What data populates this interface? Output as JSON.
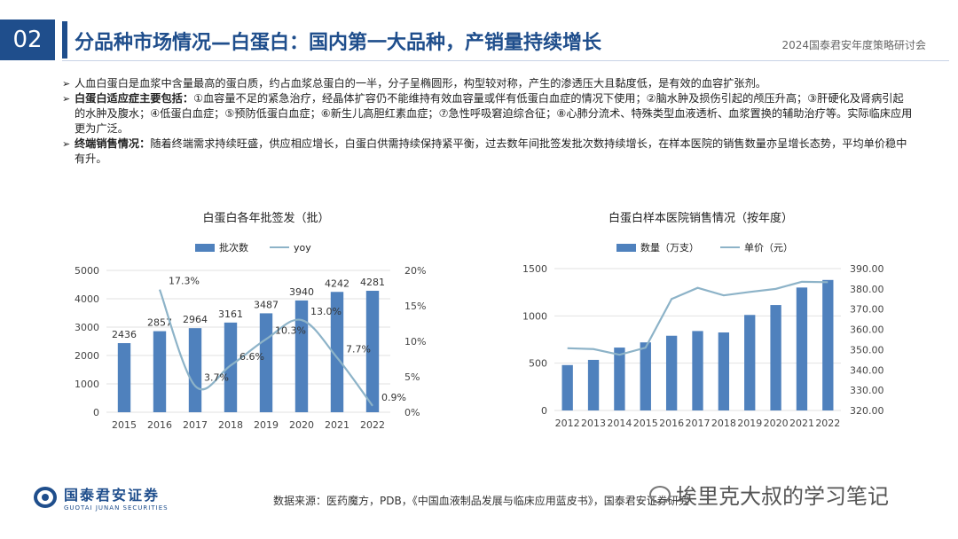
{
  "header": {
    "slide_number": "02",
    "title": "分品种市场情况—白蛋白：国内第一大品种，产销量持续增长",
    "conference": "2024国泰君安年度策略研讨会"
  },
  "bullets": [
    {
      "bold": "",
      "text": "人血白蛋白是血浆中含量最高的蛋白质，约占血浆总蛋白的一半，分子呈椭圆形，构型较对称，产生的渗透压大且黏度低，是有效的血容扩张剂。"
    },
    {
      "bold": "白蛋白适应症主要包括：",
      "text": "①血容量不足的紧急治疗，经晶体扩容仍不能维持有效血容量或伴有低蛋白血症的情况下使用；②脑水肿及损伤引起的颅压升高；③肝硬化及肾病引起的水肿及腹水；④低蛋白血症；⑤预防低蛋白血症；⑥新生儿高胆红素血症；⑦急性呼吸窘迫综合征；⑧心肺分流术、特殊类型血液透析、血浆置换的辅助治疗等。实际临床应用更为广泛。"
    },
    {
      "bold": "终端销售情况：",
      "text": "随着终端需求持续旺盛，供应相应增长，白蛋白供需持续保持紧平衡，过去数年间批签发批次数持续增长，在样本医院的销售数量亦呈增长态势，平均单价稳中有升。"
    }
  ],
  "chart_data": [
    {
      "type": "bar",
      "title": "白蛋白各年批签发（批）",
      "categories": [
        "2015",
        "2016",
        "2017",
        "2018",
        "2019",
        "2020",
        "2021",
        "2022"
      ],
      "series": [
        {
          "name": "批次数",
          "type": "bar",
          "axis": "left",
          "values": [
            2436,
            2857,
            2964,
            3161,
            3487,
            3940,
            4242,
            4281
          ],
          "labels": [
            "2436",
            "2857",
            "2964",
            "3161",
            "3487",
            "3940",
            "4242",
            "4281"
          ]
        },
        {
          "name": "yoy",
          "type": "line",
          "axis": "right",
          "values": [
            null,
            17.3,
            3.7,
            6.6,
            10.3,
            13.0,
            7.7,
            0.9
          ],
          "labels": [
            "",
            "17.3%",
            "3.7%",
            "6.6%",
            "10.3%",
            "13.0%",
            "7.7%",
            "0.9%"
          ]
        }
      ],
      "ylim_left": [
        0,
        5000
      ],
      "yticks_left": [
        "0",
        "1000",
        "2000",
        "3000",
        "4000",
        "5000"
      ],
      "ylim_right": [
        0,
        20
      ],
      "yticks_right": [
        "0%",
        "5%",
        "10%",
        "15%",
        "20%"
      ],
      "legend": "top",
      "colors": {
        "bar": "#4f81bd",
        "line": "#8db3c8"
      }
    },
    {
      "type": "bar",
      "title": "白蛋白样本医院销售情况（按年度）",
      "categories": [
        "2012",
        "2013",
        "2014",
        "2015",
        "2016",
        "2017",
        "2018",
        "2019",
        "2020",
        "2021",
        "2022"
      ],
      "series": [
        {
          "name": "数量（万支）",
          "type": "bar",
          "axis": "left",
          "values": [
            480,
            535,
            665,
            720,
            790,
            840,
            825,
            1010,
            1115,
            1300,
            1380
          ]
        },
        {
          "name": "单价（元）",
          "type": "line",
          "axis": "right",
          "values": [
            350.7,
            350.3,
            347.5,
            351.0,
            375.0,
            380.5,
            376.8,
            378.5,
            380.0,
            383.5,
            383.3
          ]
        }
      ],
      "ylim_left": [
        0,
        1500
      ],
      "yticks_left": [
        "0",
        "500",
        "1000",
        "1500"
      ],
      "ylim_right": [
        320,
        390
      ],
      "yticks_right": [
        "320.00",
        "330.00",
        "340.00",
        "350.00",
        "360.00",
        "370.00",
        "380.00",
        "390.00"
      ],
      "legend": "top",
      "colors": {
        "bar": "#4f81bd",
        "line": "#8db3c8"
      }
    }
  ],
  "footer": {
    "logo_cn": "国泰君安证券",
    "logo_en": "GUOTAI JUNAN SECURITIES",
    "source": "数据来源：医药魔方，PDB，《中国血液制品发展与临床应用蓝皮书》，国泰君安证券研究",
    "watermark": "埃里克大叔的学习笔记"
  }
}
